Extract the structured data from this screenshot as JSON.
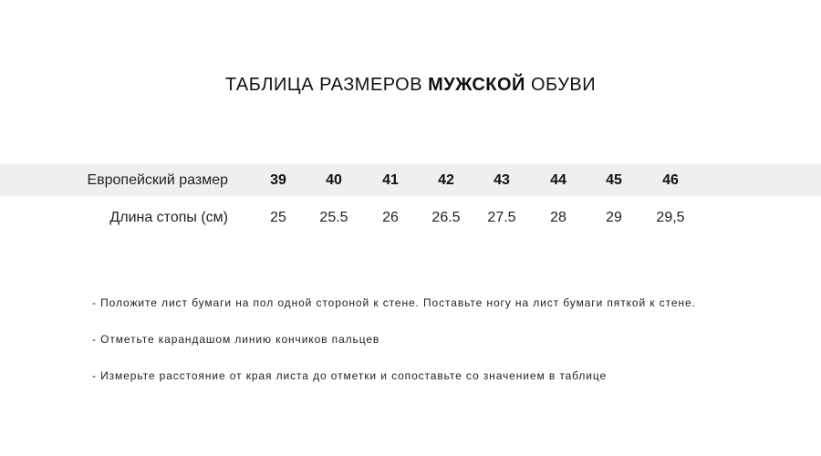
{
  "title": {
    "normal_1": "ТАБЛИЦА РАЗМЕРОВ",
    "bold": "МУЖСКОЙ",
    "normal_2": "ОБУВИ"
  },
  "table": {
    "sizes_label": "Европейский размер",
    "sizes": [
      "39",
      "40",
      "41",
      "42",
      "43",
      "44",
      "45",
      "46"
    ],
    "length_label": "Длина стопы (см)",
    "lengths": [
      "25",
      "25.5",
      "26",
      "26.5",
      "27.5",
      "28",
      "29",
      "29,5"
    ],
    "band_color": "#efefef"
  },
  "instructions": [
    "- Положите лист бумаги на пол одной стороной к стене. Поставьте ногу на лист бумаги пяткой к стене.",
    "- Отметьте карандашом линию кончиков пальцев",
    "- Измерьте расстояние от края листа до отметки и сопоставьте со значением в таблице"
  ]
}
